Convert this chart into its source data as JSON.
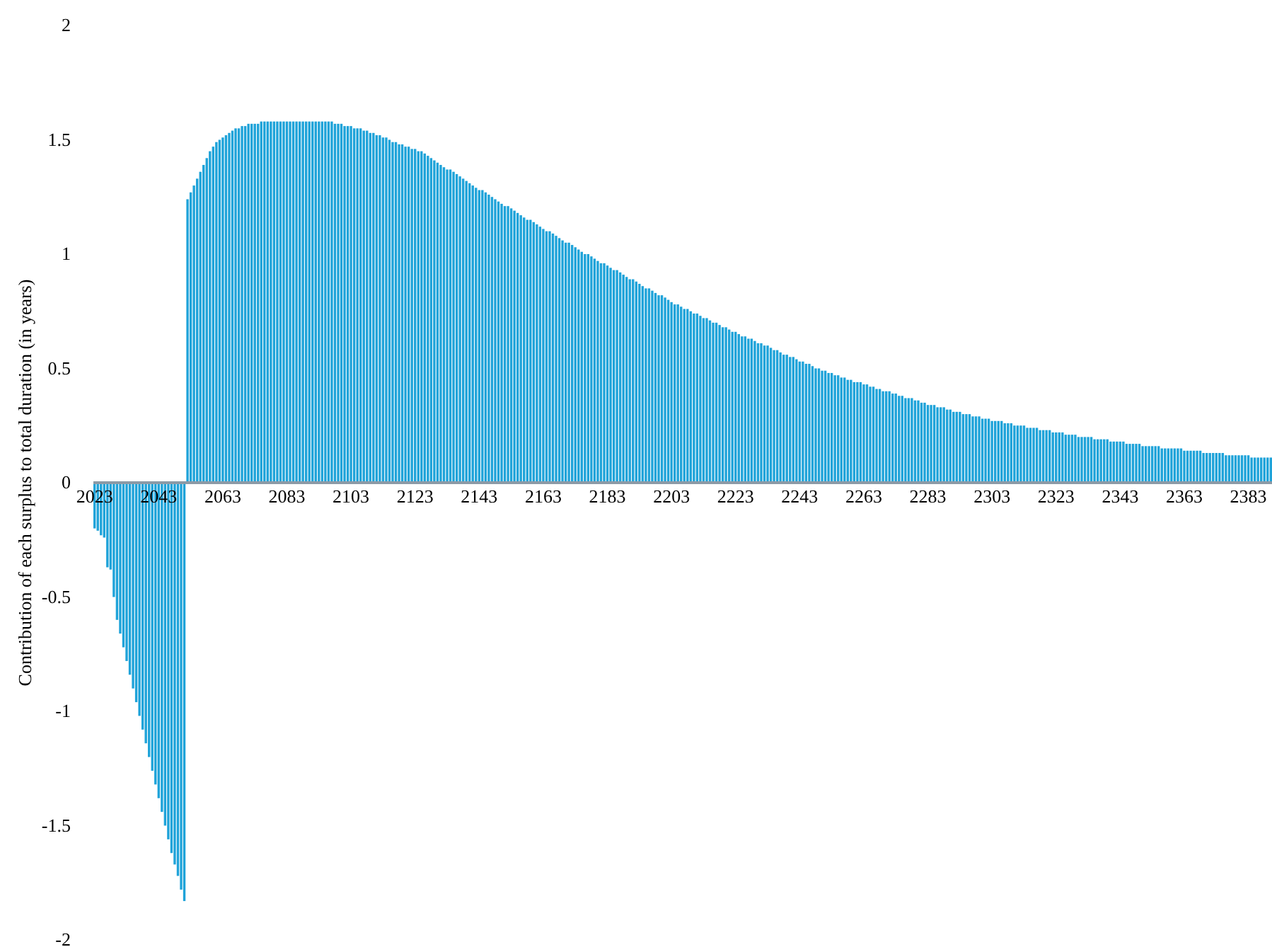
{
  "chart_data": {
    "type": "bar",
    "ylabel": "Contribution of each surplus to total duration (in years)",
    "categories": [
      "2023",
      null,
      null,
      null,
      null,
      null,
      null,
      null,
      null,
      null,
      null,
      null,
      null,
      null,
      null,
      null,
      null,
      null,
      null,
      null,
      "2043",
      null,
      null,
      null,
      null,
      null,
      null,
      null,
      null,
      null,
      null,
      null,
      null,
      null,
      null,
      null,
      null,
      null,
      null,
      null,
      "2063",
      null,
      null,
      null,
      null,
      null,
      null,
      null,
      null,
      null,
      null,
      null,
      null,
      null,
      null,
      null,
      null,
      null,
      null,
      null,
      "2083",
      null,
      null,
      null,
      null,
      null,
      null,
      null,
      null,
      null,
      null,
      null,
      null,
      null,
      null,
      null,
      null,
      null,
      null,
      null,
      "2103",
      null,
      null,
      null,
      null,
      null,
      null,
      null,
      null,
      null,
      null,
      null,
      null,
      null,
      null,
      null,
      null,
      null,
      null,
      null,
      "2123",
      null,
      null,
      null,
      null,
      null,
      null,
      null,
      null,
      null,
      null,
      null,
      null,
      null,
      null,
      null,
      null,
      null,
      null,
      null,
      "2143",
      null,
      null,
      null,
      null,
      null,
      null,
      null,
      null,
      null,
      null,
      null,
      null,
      null,
      null,
      null,
      null,
      null,
      null,
      null,
      "2163",
      null,
      null,
      null,
      null,
      null,
      null,
      null,
      null,
      null,
      null,
      null,
      null,
      null,
      null,
      null,
      null,
      null,
      null,
      null,
      "2183",
      null,
      null,
      null,
      null,
      null,
      null,
      null,
      null,
      null,
      null,
      null,
      null,
      null,
      null,
      null,
      null,
      null,
      null,
      null,
      "2203",
      null,
      null,
      null,
      null,
      null,
      null,
      null,
      null,
      null,
      null,
      null,
      null,
      null,
      null,
      null,
      null,
      null,
      null,
      null,
      "2223",
      null,
      null,
      null,
      null,
      null,
      null,
      null,
      null,
      null,
      null,
      null,
      null,
      null,
      null,
      null,
      null,
      null,
      null,
      null,
      "2243",
      null,
      null,
      null,
      null,
      null,
      null,
      null,
      null,
      null,
      null,
      null,
      null,
      null,
      null,
      null,
      null,
      null,
      null,
      null,
      "2263",
      null,
      null,
      null,
      null,
      null,
      null,
      null,
      null,
      null,
      null,
      null,
      null,
      null,
      null,
      null,
      null,
      null,
      null,
      null,
      "2283",
      null,
      null,
      null,
      null,
      null,
      null,
      null,
      null,
      null,
      null,
      null,
      null,
      null,
      null,
      null,
      null,
      null,
      null,
      null,
      "2303",
      null,
      null,
      null,
      null,
      null,
      null,
      null,
      null,
      null,
      null,
      null,
      null,
      null,
      null,
      null,
      null,
      null,
      null,
      null,
      "2323",
      null,
      null,
      null,
      null,
      null,
      null,
      null,
      null,
      null,
      null,
      null,
      null,
      null,
      null,
      null,
      null,
      null,
      null,
      null,
      "2343",
      null,
      null,
      null,
      null,
      null,
      null,
      null,
      null,
      null,
      null,
      null,
      null,
      null,
      null,
      null,
      null,
      null,
      null,
      null,
      "2363",
      null,
      null,
      null,
      null,
      null,
      null,
      null,
      null,
      null,
      null,
      null,
      null,
      null,
      null,
      null,
      null,
      null,
      null,
      null,
      "2383",
      null,
      null,
      null,
      null,
      null,
      null,
      null
    ],
    "values": [
      -0.2,
      -0.21,
      -0.23,
      -0.24,
      -0.37,
      -0.38,
      -0.5,
      -0.6,
      -0.66,
      -0.72,
      -0.78,
      -0.84,
      -0.9,
      -0.96,
      -1.02,
      -1.08,
      -1.14,
      -1.2,
      -1.26,
      -1.32,
      -1.38,
      -1.44,
      -1.5,
      -1.56,
      -1.62,
      -1.67,
      -1.72,
      -1.78,
      -1.83,
      1.24,
      1.27,
      1.3,
      1.33,
      1.36,
      1.39,
      1.42,
      1.45,
      1.47,
      1.49,
      1.5,
      1.51,
      1.52,
      1.53,
      1.54,
      1.55,
      1.55,
      1.56,
      1.56,
      1.57,
      1.57,
      1.57,
      1.57,
      1.58,
      1.58,
      1.58,
      1.58,
      1.58,
      1.58,
      1.58,
      1.58,
      1.58,
      1.58,
      1.58,
      1.58,
      1.58,
      1.58,
      1.58,
      1.58,
      1.58,
      1.58,
      1.58,
      1.58,
      1.58,
      1.58,
      1.58,
      1.57,
      1.57,
      1.57,
      1.56,
      1.56,
      1.56,
      1.55,
      1.55,
      1.55,
      1.54,
      1.54,
      1.53,
      1.53,
      1.52,
      1.52,
      1.51,
      1.51,
      1.5,
      1.49,
      1.49,
      1.48,
      1.48,
      1.47,
      1.47,
      1.46,
      1.46,
      1.45,
      1.45,
      1.44,
      1.43,
      1.42,
      1.41,
      1.4,
      1.39,
      1.38,
      1.37,
      1.37,
      1.36,
      1.35,
      1.34,
      1.33,
      1.32,
      1.31,
      1.3,
      1.29,
      1.28,
      1.28,
      1.27,
      1.26,
      1.25,
      1.24,
      1.23,
      1.22,
      1.21,
      1.21,
      1.2,
      1.19,
      1.18,
      1.17,
      1.16,
      1.15,
      1.15,
      1.14,
      1.13,
      1.12,
      1.11,
      1.1,
      1.1,
      1.09,
      1.08,
      1.07,
      1.06,
      1.05,
      1.05,
      1.04,
      1.03,
      1.02,
      1.01,
      1.0,
      1.0,
      0.99,
      0.98,
      0.97,
      0.96,
      0.96,
      0.95,
      0.94,
      0.93,
      0.93,
      0.92,
      0.91,
      0.9,
      0.89,
      0.89,
      0.88,
      0.87,
      0.86,
      0.85,
      0.85,
      0.84,
      0.83,
      0.82,
      0.82,
      0.81,
      0.8,
      0.79,
      0.78,
      0.78,
      0.77,
      0.76,
      0.76,
      0.75,
      0.74,
      0.74,
      0.73,
      0.72,
      0.72,
      0.71,
      0.7,
      0.7,
      0.69,
      0.68,
      0.68,
      0.67,
      0.66,
      0.66,
      0.65,
      0.64,
      0.64,
      0.63,
      0.63,
      0.62,
      0.61,
      0.61,
      0.6,
      0.6,
      0.59,
      0.58,
      0.58,
      0.57,
      0.56,
      0.56,
      0.55,
      0.55,
      0.54,
      0.53,
      0.53,
      0.52,
      0.52,
      0.51,
      0.5,
      0.5,
      0.49,
      0.49,
      0.48,
      0.48,
      0.47,
      0.47,
      0.46,
      0.46,
      0.45,
      0.45,
      0.44,
      0.44,
      0.44,
      0.43,
      0.43,
      0.42,
      0.42,
      0.41,
      0.41,
      0.4,
      0.4,
      0.4,
      0.39,
      0.39,
      0.38,
      0.38,
      0.37,
      0.37,
      0.37,
      0.36,
      0.36,
      0.35,
      0.35,
      0.34,
      0.34,
      0.34,
      0.33,
      0.33,
      0.33,
      0.32,
      0.32,
      0.31,
      0.31,
      0.31,
      0.3,
      0.3,
      0.3,
      0.29,
      0.29,
      0.29,
      0.28,
      0.28,
      0.28,
      0.27,
      0.27,
      0.27,
      0.27,
      0.26,
      0.26,
      0.26,
      0.25,
      0.25,
      0.25,
      0.25,
      0.24,
      0.24,
      0.24,
      0.24,
      0.23,
      0.23,
      0.23,
      0.23,
      0.22,
      0.22,
      0.22,
      0.22,
      0.21,
      0.21,
      0.21,
      0.21,
      0.2,
      0.2,
      0.2,
      0.2,
      0.2,
      0.19,
      0.19,
      0.19,
      0.19,
      0.19,
      0.18,
      0.18,
      0.18,
      0.18,
      0.18,
      0.17,
      0.17,
      0.17,
      0.17,
      0.17,
      0.16,
      0.16,
      0.16,
      0.16,
      0.16,
      0.16,
      0.15,
      0.15,
      0.15,
      0.15,
      0.15,
      0.15,
      0.15,
      0.14,
      0.14,
      0.14,
      0.14,
      0.14,
      0.14,
      0.13,
      0.13,
      0.13,
      0.13,
      0.13,
      0.13,
      0.13,
      0.12,
      0.12,
      0.12,
      0.12,
      0.12,
      0.12,
      0.12,
      0.12,
      0.11,
      0.11,
      0.11,
      0.11,
      0.11,
      0.11,
      0.11
    ],
    "color": "#1fa3d9",
    "ylim": [
      -2,
      2
    ],
    "yticks": [
      -2,
      -1.5,
      -1,
      -0.5,
      0,
      0.5,
      1,
      1.5,
      2
    ],
    "grid": false
  }
}
